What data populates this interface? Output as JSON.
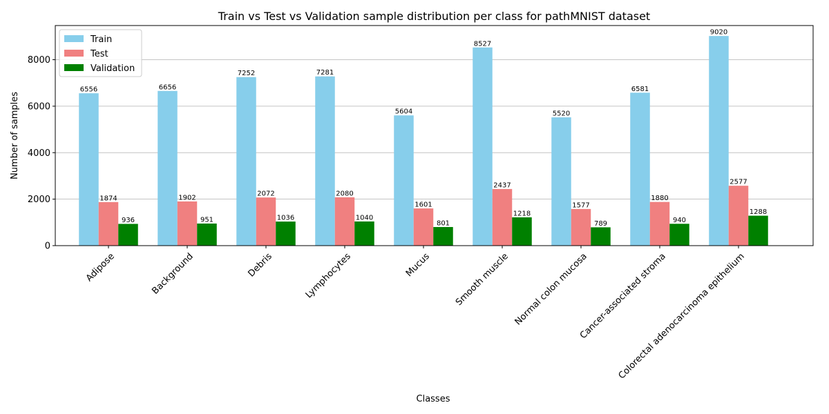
{
  "chart_data": {
    "type": "bar",
    "title": "Train vs Test vs Validation sample distribution per class for pathMNIST dataset",
    "xlabel": "Classes",
    "ylabel": "Number of samples",
    "ylim": [
      0,
      9470
    ],
    "yticks": [
      0,
      2000,
      4000,
      6000,
      8000
    ],
    "grid": "y",
    "legend_position": "upper-left",
    "categories": [
      "Adipose",
      "Background",
      "Debris",
      "Lymphocytes",
      "Mucus",
      "Smooth muscle",
      "Normal colon mucosa",
      "Cancer-associated stroma",
      "Colorectal adenocarcinoma epithelium"
    ],
    "series": [
      {
        "name": "Train",
        "color": "#87ceeb",
        "values": [
          6556,
          6656,
          7252,
          7281,
          5604,
          8527,
          5520,
          6581,
          9020
        ]
      },
      {
        "name": "Test",
        "color": "#f08080",
        "values": [
          1874,
          1902,
          2072,
          2080,
          1601,
          2437,
          1577,
          1880,
          2577
        ]
      },
      {
        "name": "Validation",
        "color": "#008000",
        "values": [
          936,
          951,
          1036,
          1040,
          801,
          1218,
          789,
          940,
          1288
        ]
      }
    ]
  }
}
